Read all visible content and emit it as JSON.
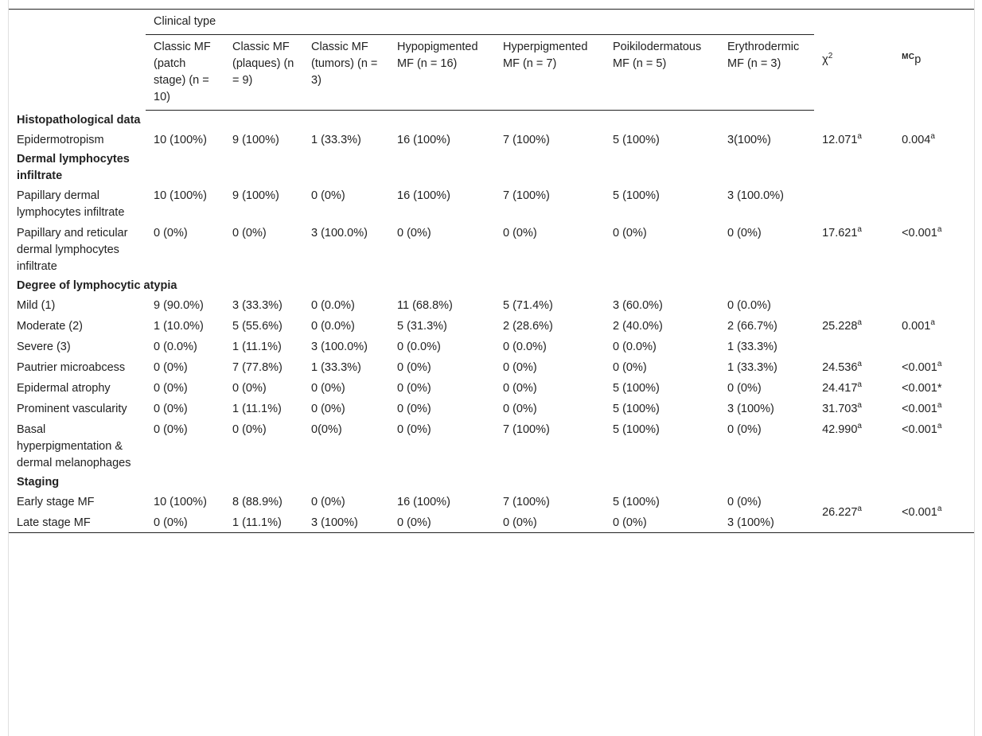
{
  "table": {
    "group_header": "Clinical type",
    "columns": [
      "Classic MF (patch stage) (n = 10)",
      "Classic MF (plaques) (n = 9)",
      "Classic MF (tumors) (n = 3)",
      "Hypopigmented MF (n = 16)",
      "Hyperpigmented MF (n = 7)",
      "Poikilodermatous MF (n = 5)",
      "Erythrodermic MF (n = 3)"
    ],
    "chi_label": "χ",
    "chi_sup": "2",
    "p_prefix": "MC",
    "p_label": "p",
    "sup_a": "a",
    "sections": {
      "histo": "Histopathological data",
      "dermal": "Dermal lymphocytes infiltrate",
      "atypia": "Degree of lymphocytic atypia",
      "staging": "Staging"
    },
    "rows": {
      "epidermotropism": {
        "label": "Epidermotropism",
        "cells": [
          "10 (100%)",
          "9 (100%)",
          "1 (33.3%)",
          "16 (100%)",
          "7 (100%)",
          "5 (100%)",
          "3(100%)"
        ],
        "chi": "12.071",
        "p": "0.004"
      },
      "papillary": {
        "label": "Papillary dermal lymphocytes infiltrate",
        "cells": [
          "10 (100%)",
          "9 (100%)",
          "0 (0%)",
          "16 (100%)",
          "7 (100%)",
          "5 (100%)",
          "3 (100.0%)"
        ]
      },
      "papillary_reticular": {
        "label": "Papillary and reticular dermal lymphocytes infiltrate",
        "cells": [
          "0 (0%)",
          "0 (0%)",
          "3 (100.0%)",
          "0 (0%)",
          "0 (0%)",
          "0 (0%)",
          "0 (0%)"
        ],
        "chi": "17.621",
        "p": "<0.001"
      },
      "mild": {
        "label": "Mild (1)",
        "cells": [
          "9 (90.0%)",
          "3 (33.3%)",
          "0 (0.0%)",
          "11 (68.8%)",
          "5 (71.4%)",
          "3 (60.0%)",
          "0 (0.0%)"
        ]
      },
      "moderate": {
        "label": "Moderate (2)",
        "cells": [
          "1 (10.0%)",
          "5 (55.6%)",
          "0 (0.0%)",
          "5 (31.3%)",
          "2 (28.6%)",
          "2 (40.0%)",
          "2 (66.7%)"
        ],
        "chi": "25.228",
        "p": "0.001"
      },
      "severe": {
        "label": "Severe (3)",
        "cells": [
          "0 (0.0%)",
          "1 (11.1%)",
          "3 (100.0%)",
          "0 (0.0%)",
          "0 (0.0%)",
          "0 (0.0%)",
          "1 (33.3%)"
        ]
      },
      "pautrier": {
        "label": "Pautrier microabcess",
        "cells": [
          "0 (0%)",
          "7 (77.8%)",
          "1 (33.3%)",
          "0 (0%)",
          "0 (0%)",
          "0 (0%)",
          "1 (33.3%)"
        ],
        "chi": "24.536",
        "p": "<0.001"
      },
      "atrophy": {
        "label": "Epidermal atrophy",
        "cells": [
          "0 (0%)",
          "0 (0%)",
          "0 (0%)",
          "0 (0%)",
          "0 (0%)",
          "5 (100%)",
          "0 (0%)"
        ],
        "chi": "24.417",
        "p": "<0.001*"
      },
      "vascularity": {
        "label": "Prominent vascularity",
        "cells": [
          "0 (0%)",
          "1 (11.1%)",
          "0 (0%)",
          "0 (0%)",
          "0 (0%)",
          "5 (100%)",
          "3 (100%)"
        ],
        "chi": "31.703",
        "p": "<0.001"
      },
      "basal": {
        "label": "Basal hyperpigmentation & dermal melanophages",
        "cells": [
          "0 (0%)",
          "0 (0%)",
          "0(0%)",
          "0 (0%)",
          "7 (100%)",
          "5 (100%)",
          "0 (0%)"
        ],
        "chi": "42.990",
        "p": "<0.001"
      },
      "early": {
        "label": "Early stage MF",
        "cells": [
          "10 (100%)",
          "8 (88.9%)",
          "0 (0%)",
          "16 (100%)",
          "7 (100%)",
          "5 (100%)",
          "0 (0%)"
        ]
      },
      "late": {
        "label": "Late stage MF",
        "cells": [
          "0 (0%)",
          "1 (11.1%)",
          "3 (100%)",
          "0 (0%)",
          "0 (0%)",
          "0 (0%)",
          "3 (100%)"
        ],
        "chi": "26.227",
        "p": "<0.001"
      }
    }
  }
}
